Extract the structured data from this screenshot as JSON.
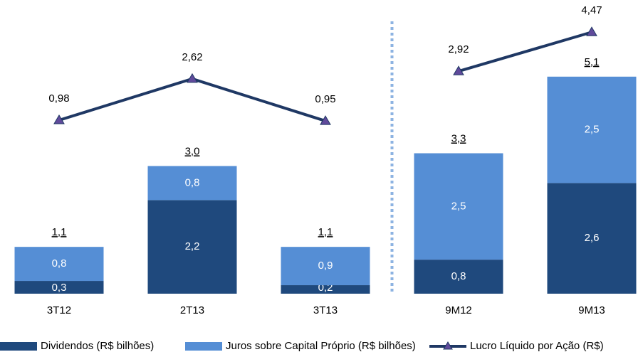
{
  "chart_data": {
    "type": "bar",
    "categories": [
      "3T12",
      "2T13",
      "3T13",
      "9M12",
      "9M13"
    ],
    "series": [
      {
        "name": "Dividendos (R$ bilhões)",
        "color": "#1f497d",
        "values": [
          0.3,
          2.2,
          0.2,
          0.8,
          2.6
        ],
        "value_labels": [
          "0,3",
          "2,2",
          "0,2",
          "0,8",
          "2,6"
        ]
      },
      {
        "name": "Juros sobre Capital Próprio (R$ bilhões)",
        "color": "#558ed5",
        "values": [
          0.8,
          0.8,
          0.9,
          2.5,
          2.5
        ],
        "value_labels": [
          "0,8",
          "0,8",
          "0,9",
          "2,5",
          "2,5"
        ]
      },
      {
        "name": "Lucro Líquido por Ação (R$)",
        "type": "line",
        "axis": "y2",
        "color": "#1f3864",
        "marker_color": "#604a9b",
        "values": [
          0.98,
          2.62,
          0.95,
          2.92,
          4.47
        ],
        "value_labels": [
          "0,98",
          "2,62",
          "0,95",
          "2,92",
          "4,47"
        ]
      }
    ],
    "totals": {
      "values": [
        1.1,
        3.0,
        1.1,
        3.3,
        5.1
      ],
      "value_labels": [
        "1,1",
        "3,0",
        "1,1",
        "3,3",
        "5,1"
      ]
    },
    "divider_after": 2,
    "ylim": [
      0,
      6.4
    ],
    "y2lim": [
      -5.9,
      4.9
    ],
    "grid": false
  }
}
